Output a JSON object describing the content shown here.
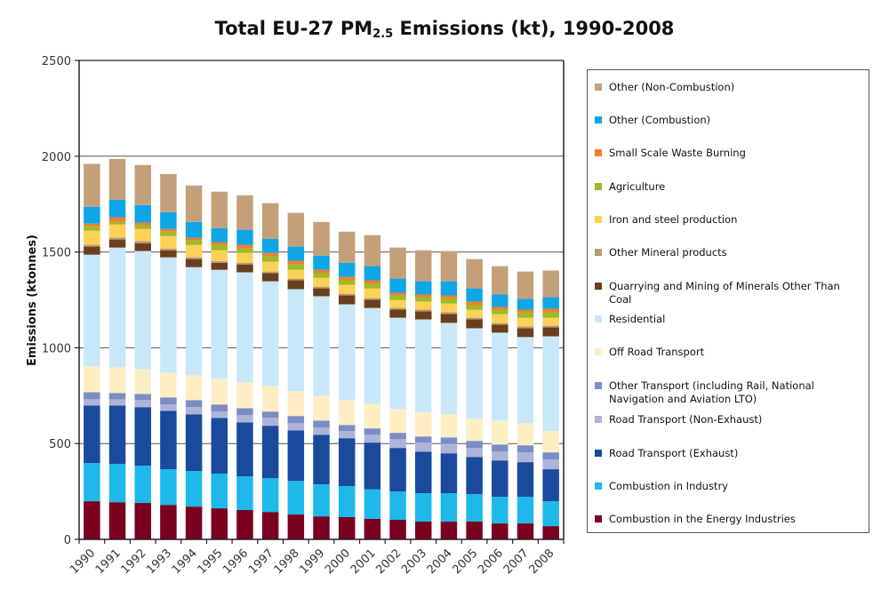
{
  "chart_data": {
    "type": "bar",
    "stacked": true,
    "title_main": "Total EU-27 PM",
    "title_sub": "2.5",
    "title_rest": " Emissions (kt), 1990-2008",
    "title": "Total EU-27 PM2.5 Emissions (kt), 1990-2008",
    "xlabel": "",
    "ylabel": "Emissions (ktonnes)",
    "ylim": [
      0,
      2500
    ],
    "yticks": [
      0,
      500,
      1000,
      1500,
      2000,
      2500
    ],
    "grid": true,
    "legend_position": "right",
    "categories": [
      "1990",
      "1991",
      "1992",
      "1993",
      "1994",
      "1995",
      "1996",
      "1997",
      "1998",
      "1999",
      "2000",
      "2001",
      "2002",
      "2003",
      "2004",
      "2005",
      "2006",
      "2007",
      "2008"
    ],
    "series": [
      {
        "name": "Combustion in the Energy Industries",
        "color": "#7a0020",
        "values": [
          199,
          194,
          190,
          180,
          171,
          162,
          153,
          143,
          130,
          120,
          116,
          107,
          102,
          93,
          93,
          93,
          83,
          83,
          69
        ]
      },
      {
        "name": "Combustion in Industry",
        "color": "#1eb8ea",
        "values": [
          199,
          200,
          194,
          186,
          186,
          181,
          176,
          176,
          175,
          167,
          162,
          154,
          148,
          148,
          148,
          143,
          139,
          139,
          130
        ]
      },
      {
        "name": "Road Transport (Exhaust)",
        "color": "#1a4a9c",
        "values": [
          301,
          305,
          306,
          305,
          296,
          291,
          282,
          274,
          264,
          259,
          250,
          244,
          227,
          217,
          208,
          194,
          190,
          181,
          167
        ]
      },
      {
        "name": "Road Transport (Non-Exhaust)",
        "color": "#aeb3da",
        "values": [
          32,
          32,
          37,
          33,
          37,
          33,
          37,
          41,
          37,
          37,
          37,
          41,
          46,
          47,
          51,
          47,
          46,
          51,
          51
        ]
      },
      {
        "name": "Other Transport (including Rail, National Navigation and Aviation LTO)",
        "color": "#7b8ec4",
        "values": [
          37,
          33,
          32,
          37,
          37,
          37,
          37,
          33,
          38,
          37,
          32,
          33,
          33,
          32,
          32,
          37,
          37,
          37,
          37
        ]
      },
      {
        "name": "Off Road Transport",
        "color": "#fdeec4",
        "values": [
          135,
          134,
          130,
          129,
          129,
          134,
          134,
          134,
          129,
          130,
          130,
          129,
          125,
          125,
          121,
          116,
          125,
          115,
          111
        ]
      },
      {
        "name": "Residential",
        "color": "#c8e8fa",
        "values": [
          583,
          625,
          616,
          602,
          565,
          569,
          575,
          546,
          533,
          519,
          500,
          500,
          476,
          486,
          477,
          472,
          459,
          450,
          495
        ]
      },
      {
        "name": "Quarrying and Mining of Minerals Other Than Coal",
        "color": "#6b3f1e",
        "values": [
          42,
          42,
          41,
          37,
          42,
          37,
          41,
          42,
          46,
          41,
          46,
          42,
          42,
          42,
          46,
          46,
          41,
          46,
          46
        ]
      },
      {
        "name": "Other Mineral products",
        "color": "#b89a78",
        "values": [
          10,
          10,
          10,
          9,
          9,
          9,
          9,
          9,
          9,
          9,
          9,
          9,
          9,
          9,
          9,
          9,
          9,
          9,
          9
        ]
      },
      {
        "name": "Iron and steel production",
        "color": "#fdd155",
        "values": [
          73,
          69,
          64,
          65,
          65,
          56,
          51,
          51,
          46,
          47,
          47,
          51,
          42,
          42,
          46,
          42,
          47,
          46,
          42
        ]
      },
      {
        "name": "Agriculture",
        "color": "#9dbb2a",
        "values": [
          23,
          13,
          19,
          23,
          23,
          28,
          23,
          28,
          28,
          23,
          23,
          23,
          23,
          23,
          28,
          23,
          23,
          28,
          28
        ]
      },
      {
        "name": "Small Scale Waste Burning",
        "color": "#f07f2a",
        "values": [
          14,
          24,
          14,
          14,
          14,
          14,
          19,
          18,
          19,
          18,
          18,
          19,
          14,
          14,
          14,
          19,
          14,
          14,
          19
        ]
      },
      {
        "name": "Other (Combustion)",
        "color": "#0fa6e6",
        "values": [
          88,
          92,
          92,
          88,
          83,
          74,
          79,
          74,
          74,
          74,
          74,
          74,
          74,
          69,
          74,
          69,
          65,
          56,
          60
        ]
      },
      {
        "name": "Other (Non-Combustion)",
        "color": "#c4a07a",
        "values": [
          224,
          213,
          209,
          199,
          190,
          190,
          180,
          186,
          176,
          176,
          162,
          162,
          162,
          162,
          158,
          153,
          148,
          143,
          139
        ]
      }
    ],
    "legend_order": [
      "Other (Non-Combustion)",
      "Other (Combustion)",
      "Small Scale Waste Burning",
      "Agriculture",
      "Iron and steel production",
      "Other Mineral products",
      "Quarrying and Mining of Minerals Other Than Coal",
      "Residential",
      "Off Road Transport",
      "Other Transport (including Rail, National Navigation and Aviation LTO)",
      "Road Transport (Non-Exhaust)",
      "Road Transport (Exhaust)",
      "Combustion in Industry",
      "Combustion in the Energy Industries"
    ]
  }
}
